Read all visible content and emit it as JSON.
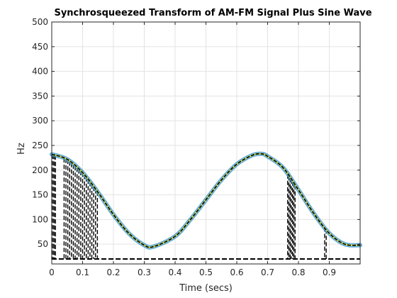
{
  "chart_data": {
    "type": "line",
    "title": "Synchrosqueezed Transform of AM-FM Signal Plus Sine Wave",
    "xlabel": "Time (secs)",
    "ylabel": "Hz",
    "xlim": [
      0,
      1
    ],
    "ylim": [
      10,
      500
    ],
    "xticks": [
      0,
      0.1,
      0.2,
      0.3,
      0.4,
      0.5,
      0.6,
      0.7,
      0.8,
      0.9
    ],
    "xtick_labels": [
      "0",
      "0.1",
      "0.2",
      "0.3",
      "0.4",
      "0.5",
      "0.6",
      "0.7",
      "0.8",
      "0.9"
    ],
    "yticks": [
      50,
      100,
      150,
      200,
      250,
      300,
      350,
      400,
      450,
      500
    ],
    "ytick_labels": [
      "50",
      "100",
      "150",
      "200",
      "250",
      "300",
      "350",
      "400",
      "450",
      "500"
    ],
    "grid": true,
    "series": [
      {
        "x": [
          0,
          0.05,
          0.1,
          0.15,
          0.2,
          0.25,
          0.3,
          0.33,
          0.4,
          0.45,
          0.5,
          0.55,
          0.6,
          0.65,
          0.68,
          0.7,
          0.75,
          0.8,
          0.85,
          0.9,
          0.95,
          1.0
        ],
        "y": [
          232,
          222,
          195,
          155,
          110,
          72,
          48,
          45,
          66,
          100,
          140,
          180,
          212,
          230,
          233,
          228,
          205,
          160,
          112,
          72,
          50,
          48
        ]
      },
      {
        "x": [
          0,
          0.25,
          0.5,
          0.75,
          1.0
        ],
        "y": [
          20,
          20,
          20,
          20,
          20
        ]
      }
    ],
    "colors": {
      "ridge": "#000000",
      "ridge_glow": "#2f8fd0",
      "ridge_peak": "#d9e34a",
      "grid": "#e3e3e3",
      "axis": "#262626"
    }
  }
}
